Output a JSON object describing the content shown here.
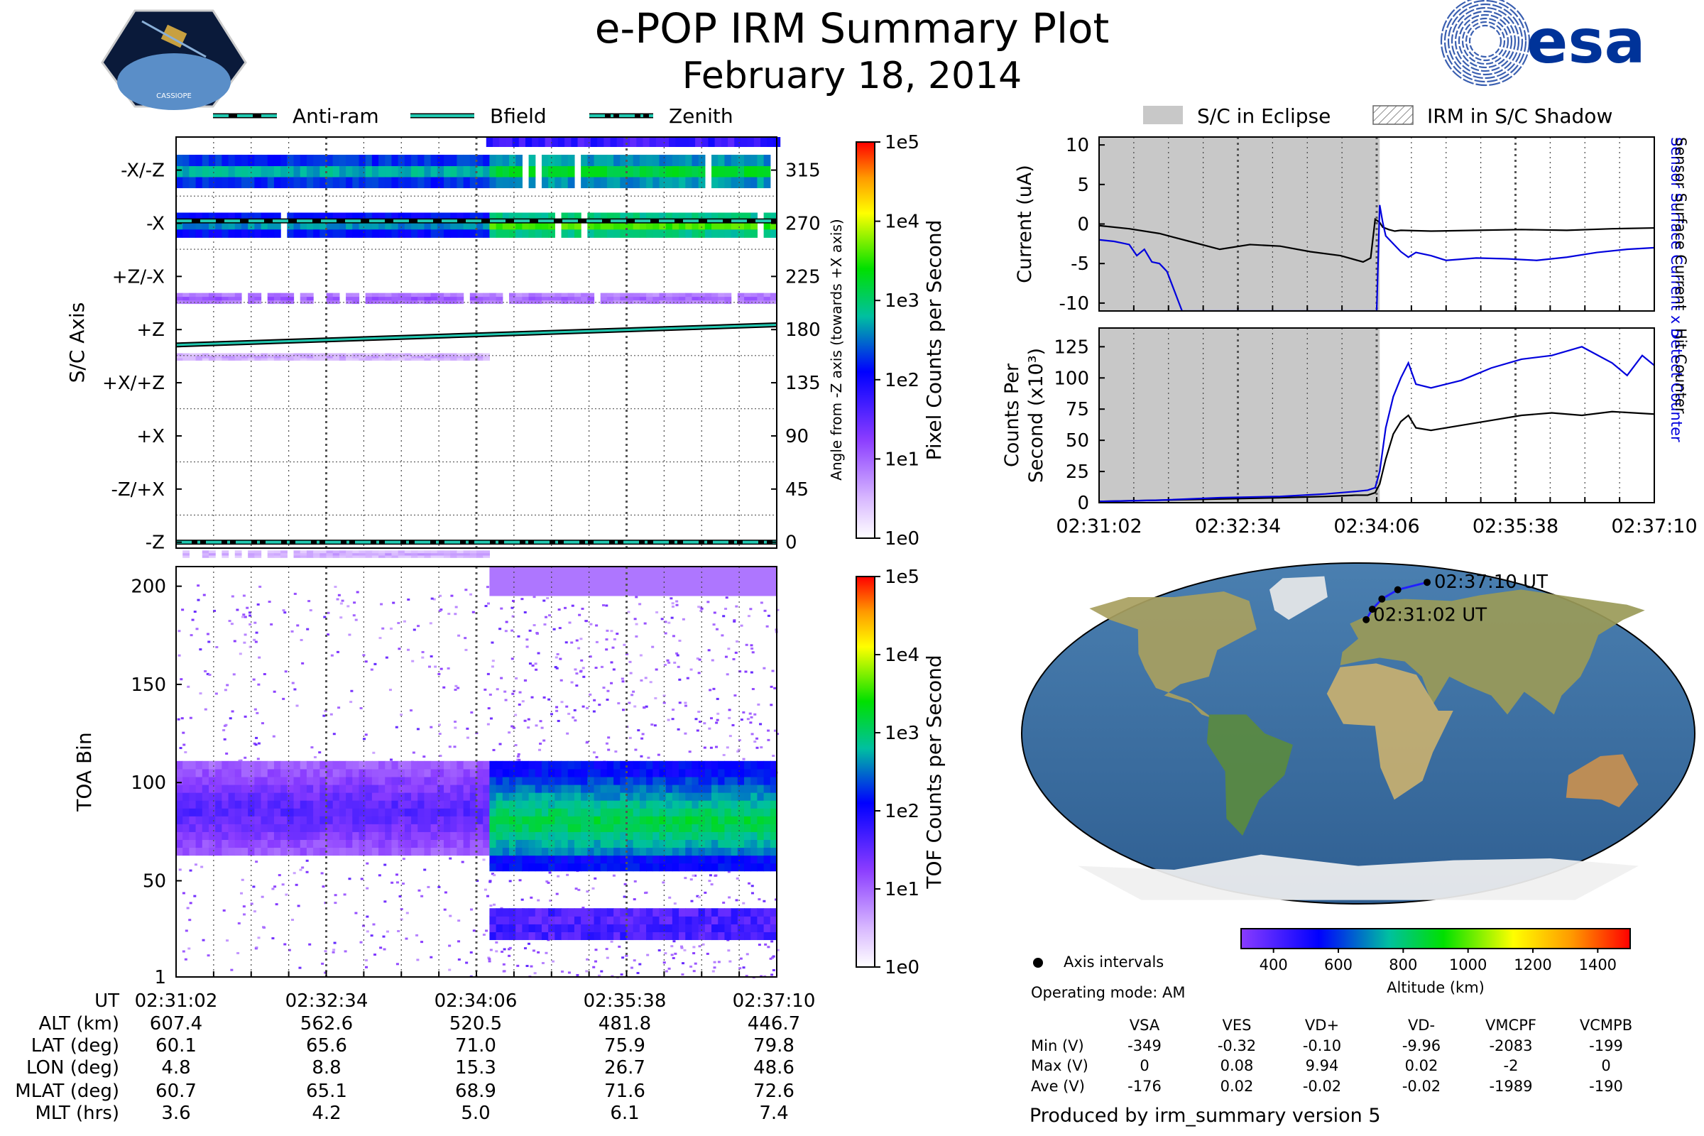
{
  "header": {
    "title": "e-POP IRM Summary Plot",
    "date": "February 18, 2014",
    "left_logo": {
      "text": "CASSIOPE",
      "icon": "cassiope-mission-badge-icon"
    },
    "right_logo": {
      "text": "esa",
      "icon": "esa-logo-icon",
      "color": "#003399"
    }
  },
  "colors": {
    "bg": "#ffffff",
    "eclipse": "#c8c8c8",
    "anti_ram_line": "#20c8b0",
    "blue_series": "#0000dd"
  },
  "chart_data": [
    {
      "id": "pixel_image",
      "type": "heatmap",
      "title": "",
      "ylabel": "S/C Axis",
      "y2label": "Angle from -Z axis (towards +X axis)",
      "ylim": [
        -5,
        343
      ],
      "ytick_values": [
        315,
        270,
        225,
        180,
        135,
        90,
        45,
        0
      ],
      "ytick_labels": [
        "-X/-Z",
        "-X",
        "+Z/-X",
        "+Z",
        "+X/+Z",
        "+X",
        "-Z/+X",
        "-Z"
      ],
      "y2tick_labels": [
        "315",
        "270",
        "225",
        "180",
        "135",
        "90",
        "45",
        "0"
      ],
      "xlim": [
        0,
        368
      ],
      "legend": [
        {
          "label": "Anti-ram",
          "style": "dashed"
        },
        {
          "label": "Bfield",
          "style": "solid"
        },
        {
          "label": "Zenith",
          "style": "dashdot"
        }
      ],
      "lines": {
        "anti_ram_angle": 272,
        "zenith_angle": 0,
        "bfield_start": 167,
        "bfield_end": 184
      },
      "bands": [
        {
          "lo": 300,
          "hi": 328,
          "before": 0.55,
          "after": 0.64
        },
        {
          "lo": 258,
          "hi": 279,
          "before": 0.52,
          "after": 0.71
        },
        {
          "lo": 202,
          "hi": 211,
          "before": 0.22,
          "after": 0.2
        },
        {
          "lo": 154,
          "hi": 160,
          "before": 0.12,
          "after": 0.0
        },
        {
          "lo": -13,
          "hi": -7,
          "before": 0.12,
          "after": 0.0
        }
      ],
      "colorbar": {
        "label": "Pixel Counts per Second",
        "ticks": [
          "1e5",
          "1e4",
          "1e3",
          "1e2",
          "1e1",
          "1e0"
        ]
      }
    },
    {
      "id": "tof_image",
      "type": "heatmap",
      "ylabel": "TOA Bin",
      "ylim": [
        1,
        210
      ],
      "ytick_values": [
        200,
        150,
        100,
        50,
        1
      ],
      "ytick_labels": [
        "200",
        "150",
        "100",
        "50",
        "1"
      ],
      "xlim": [
        0,
        368
      ],
      "colorbar": {
        "label": "TOF Counts per Second",
        "ticks": [
          "1e5",
          "1e4",
          "1e3",
          "1e2",
          "1e1",
          "1e0"
        ]
      }
    },
    {
      "id": "current_plot",
      "type": "line",
      "ylabel": "Current (uA)",
      "y2label_blue": "Sensor Surface Current x 5",
      "y2label_black": "Sensor Surface Current",
      "ylim": [
        -11,
        11
      ],
      "ytick_labels": [
        "10",
        "5",
        "0",
        "-5",
        "-10"
      ],
      "ytick_values": [
        10,
        5,
        0,
        -5,
        -10
      ],
      "xlim": [
        0,
        368
      ],
      "legend": [
        {
          "label": "S/C in Eclipse",
          "style": "filled-gray"
        },
        {
          "label": "IRM in S/C Shadow",
          "style": "hatched"
        }
      ],
      "eclipse_range": [
        0,
        186
      ],
      "series": [
        {
          "name": "Sensor Surface Current",
          "color": "#000000",
          "x": [
            0,
            20,
            40,
            60,
            80,
            100,
            120,
            140,
            160,
            175,
            180,
            183,
            186,
            188,
            192,
            196,
            200,
            220,
            250,
            280,
            310,
            340,
            368
          ],
          "y": [
            -0.2,
            -0.6,
            -1.2,
            -2.2,
            -3.2,
            -2.6,
            -2.8,
            -3.5,
            -4.0,
            -4.8,
            -4.3,
            0.6,
            0.2,
            -0.4,
            -0.7,
            -0.9,
            -0.8,
            -0.9,
            -0.8,
            -0.7,
            -0.8,
            -0.6,
            -0.5
          ]
        },
        {
          "name": "Sensor Surface Current x 5",
          "color": "#0000dd",
          "x": [
            0,
            10,
            15,
            20,
            25,
            30,
            35,
            40,
            45,
            50,
            55,
            60,
            62,
            184,
            186,
            188,
            190,
            195,
            200,
            205,
            210,
            220,
            230,
            250,
            270,
            290,
            310,
            330,
            350,
            368
          ],
          "y": [
            -2.0,
            -2.2,
            -2.4,
            -2.6,
            -4.0,
            -3.2,
            -4.8,
            -5.0,
            -6.0,
            -8.5,
            -11,
            -11,
            -11,
            -11,
            2.4,
            0.2,
            -1.5,
            -2.5,
            -3.5,
            -4.2,
            -3.6,
            -4.0,
            -4.6,
            -4.3,
            -4.4,
            -4.6,
            -4.2,
            -3.6,
            -3.2,
            -3.0
          ]
        }
      ]
    },
    {
      "id": "counts_plot",
      "type": "line",
      "ylabel": "Counts Per Second (x10³)",
      "y2label_blue": "Detect Counter",
      "y2label_black": "Hit Counter",
      "ylim": [
        0,
        140
      ],
      "ytick_labels": [
        "125",
        "100",
        "75",
        "50",
        "25",
        "0"
      ],
      "ytick_values": [
        125,
        100,
        75,
        50,
        25,
        0
      ],
      "xlim": [
        0,
        368
      ],
      "xtick_labels": [
        "02:31:02",
        "02:32:34",
        "02:34:06",
        "02:35:38",
        "02:37:10"
      ],
      "eclipse_range": [
        0,
        186
      ],
      "series": [
        {
          "name": "Hit Counter",
          "color": "#000000",
          "x": [
            0,
            40,
            80,
            120,
            150,
            170,
            178,
            183,
            186,
            190,
            195,
            200,
            205,
            210,
            220,
            240,
            260,
            280,
            300,
            320,
            340,
            368
          ],
          "y": [
            1,
            2,
            3,
            4,
            5,
            6,
            6,
            8,
            15,
            35,
            55,
            65,
            70,
            60,
            58,
            62,
            66,
            70,
            72,
            70,
            73,
            71
          ]
        },
        {
          "name": "Detect Counter",
          "color": "#0000dd",
          "x": [
            0,
            40,
            80,
            120,
            150,
            170,
            178,
            183,
            186,
            190,
            195,
            200,
            205,
            210,
            220,
            240,
            260,
            280,
            300,
            320,
            340,
            350,
            360,
            368
          ],
          "y": [
            1,
            2,
            4,
            5,
            7,
            9,
            10,
            12,
            25,
            60,
            85,
            100,
            112,
            95,
            92,
            98,
            108,
            115,
            118,
            125,
            112,
            102,
            118,
            110
          ]
        }
      ]
    },
    {
      "id": "ground_track",
      "type": "scatter",
      "title": "",
      "legend": [
        {
          "label": "Axis intervals",
          "style": "marker-dot"
        }
      ],
      "track": {
        "lon": [
          4.8,
          8.8,
          15.3,
          26.7,
          48.6
        ],
        "lat": [
          60.1,
          65.6,
          71.0,
          75.9,
          79.8
        ]
      },
      "start_label": "02:31:02 UT",
      "end_label": "02:37:10 UT",
      "colorbar": {
        "label": "Altitude (km)",
        "range": [
          300,
          1500
        ],
        "ticks": [
          "400",
          "600",
          "800",
          "1000",
          "1200",
          "1400"
        ]
      }
    }
  ],
  "time_axis": {
    "ticks": [
      "02:31:02",
      "02:32:34",
      "02:34:06",
      "02:35:38",
      "02:37:10"
    ],
    "tick_values": [
      0,
      92,
      184,
      276,
      368
    ],
    "minor_values": [
      23,
      46,
      69,
      115,
      138,
      161,
      207,
      230,
      253,
      299,
      322,
      345
    ]
  },
  "ephemeris": {
    "rows": [
      {
        "label": "UT",
        "values": [
          "02:31:02",
          "02:32:34",
          "02:34:06",
          "02:35:38",
          "02:37:10"
        ]
      },
      {
        "label": "ALT (km)",
        "values": [
          "607.4",
          "562.6",
          "520.5",
          "481.8",
          "446.7"
        ]
      },
      {
        "label": "LAT (deg)",
        "values": [
          "60.1",
          "65.6",
          "71.0",
          "75.9",
          "79.8"
        ]
      },
      {
        "label": "LON (deg)",
        "values": [
          "4.8",
          "8.8",
          "15.3",
          "26.7",
          "48.6"
        ]
      },
      {
        "label": "MLAT (deg)",
        "values": [
          "60.7",
          "65.1",
          "68.9",
          "71.6",
          "72.6"
        ]
      },
      {
        "label": "MLT (hrs)",
        "values": [
          "3.6",
          "4.2",
          "5.0",
          "6.1",
          "7.4"
        ]
      }
    ]
  },
  "info": {
    "operating_mode": "Operating mode: AM",
    "voltage_table": {
      "columns": [
        "VSA",
        "VES",
        "VD+",
        "VD-",
        "VMCPF",
        "VCMPB"
      ],
      "rows": [
        {
          "label": "Min (V)",
          "values": [
            "-349",
            "-0.32",
            "-0.10",
            "-9.96",
            "-2083",
            "-199"
          ]
        },
        {
          "label": "Max (V)",
          "values": [
            "0",
            "0.08",
            "9.94",
            "0.02",
            "-2",
            "0"
          ]
        },
        {
          "label": "Ave (V)",
          "values": [
            "-176",
            "0.02",
            "-0.02",
            "-0.02",
            "-1989",
            "-190"
          ]
        }
      ]
    },
    "footer": "Produced by irm_summary version 5"
  }
}
